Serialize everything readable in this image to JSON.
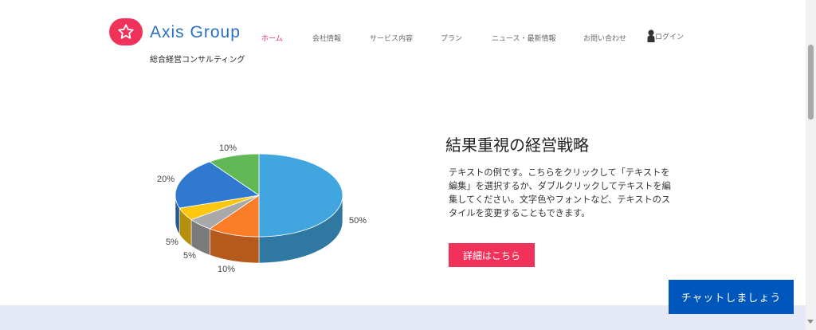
{
  "header": {
    "brand": "Axis Group",
    "tagline": "総合経営コンサルティング",
    "logo_icon": "star-icon",
    "brand_color": "#f0325a",
    "nav": [
      {
        "label": "ホーム",
        "active": true
      },
      {
        "label": "会社情報"
      },
      {
        "label": "サービス内容"
      },
      {
        "label": "プラン"
      },
      {
        "label": "ニュース・最新情報"
      },
      {
        "label": "お問い合わせ"
      }
    ],
    "login_label": "ログイン",
    "login_icon": "user-icon"
  },
  "section": {
    "title": "結果重視の経営戦略",
    "body": "テキストの例です。こちらをクリックして「テキストを編集」を選択するか、ダブルクリックしてテキストを編集してください。文字色やフォントなど、テキストのスタイルを変更することもできます。",
    "button_label": "詳細はこちら"
  },
  "chat_button": "チャットしましょう",
  "chart_data": {
    "type": "pie",
    "style": "3d",
    "values": [
      50,
      10,
      5,
      5,
      20,
      10
    ],
    "labels": [
      "50%",
      "10%",
      "5%",
      "5%",
      "20%",
      "10%"
    ],
    "colors": [
      "#41a6e0",
      "#fb7d27",
      "#a9a9a9",
      "#fdc710",
      "#2f7ad0",
      "#62b856"
    ]
  }
}
